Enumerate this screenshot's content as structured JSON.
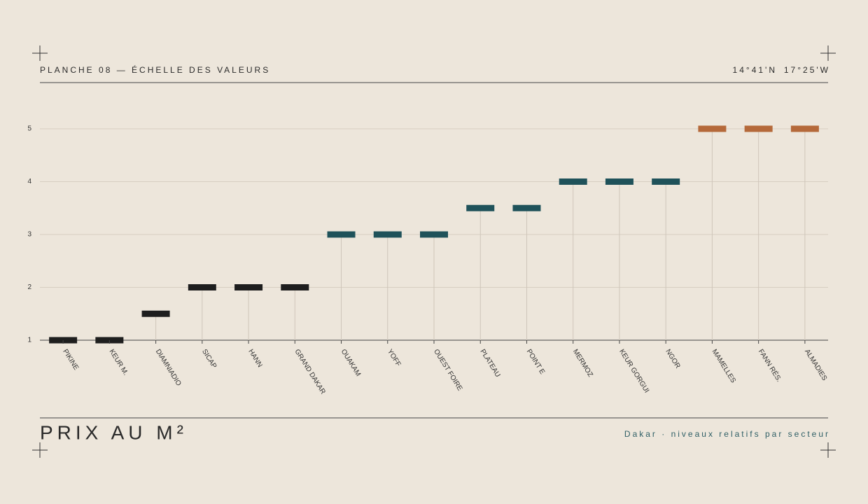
{
  "header": {
    "plate": "PLANCHE 08 — ÉCHELLE DES VALEURS",
    "coords": [
      "14°41'N",
      "17°25'W"
    ]
  },
  "chart_data": {
    "type": "dot-stem",
    "title": "PRIX AU M²",
    "subtitle": "Dakar · niveaux relatifs par secteur",
    "categories": [
      "PIKINE",
      "KEUR M.",
      "DIAMNIADIO",
      "SICAP",
      "HANN",
      "GRAND DAKAR",
      "OUAKAM",
      "YOFF",
      "OUEST FOIRE",
      "PLATEAU",
      "POINT E",
      "MERMOZ",
      "KEUR GORGUI",
      "NGOR",
      "MAMELLES",
      "FANN RÉS.",
      "ALMADIES"
    ],
    "values": [
      1,
      1,
      1.5,
      2,
      2,
      2,
      3,
      3,
      3,
      3.5,
      3.5,
      4,
      4,
      4,
      5,
      5,
      5
    ],
    "colors": [
      "#1e1e1e",
      "#1e1e1e",
      "#1e1e1e",
      "#1e1e1e",
      "#1e1e1e",
      "#1e1e1e",
      "#1f525a",
      "#1f525a",
      "#1f525a",
      "#1f525a",
      "#1f525a",
      "#1f525a",
      "#1f525a",
      "#1f525a",
      "#b5693a",
      "#b5693a",
      "#b5693a"
    ],
    "ylim": [
      1,
      5.5
    ],
    "yticks": [
      1,
      2,
      3,
      4,
      5
    ],
    "grid": true
  }
}
